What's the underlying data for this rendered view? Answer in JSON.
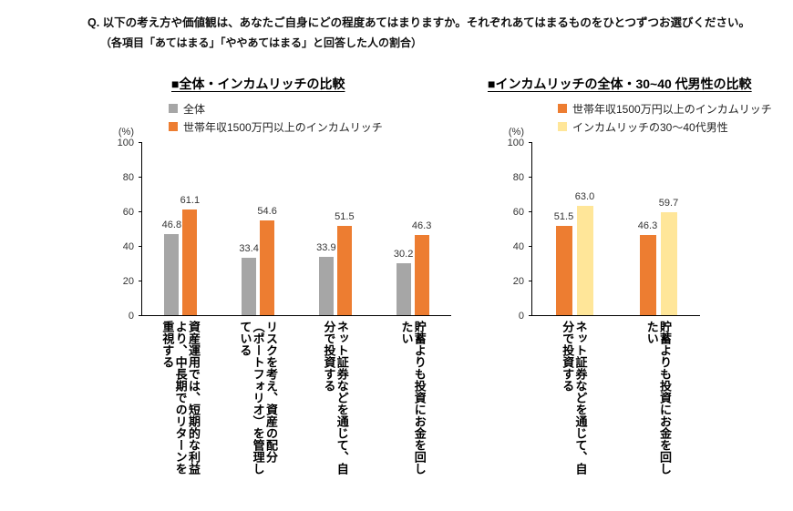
{
  "question": {
    "line1": "Q. 以下の考え方や価値観は、あなたご自身にどの程度あてはまりますか。それぞれあてはまるものをひとつずつお選びください。",
    "line2": "（各項目「あてはまる」「ややあてはまる」と回答した人の割合）"
  },
  "chart_data": [
    {
      "type": "bar",
      "title": "■全体・インカムリッチの比較",
      "unit_label": "(%)",
      "ylim": [
        0,
        100
      ],
      "yticks": [
        0,
        20,
        40,
        60,
        80,
        100
      ],
      "grid": false,
      "legend_position": "top",
      "categories": [
        "資産運用では、短期的な利益より、中長期でのリターンを重視する",
        "リスクを考え、資産の配分（ポートフォリオ）を管理している",
        "ネット証券などを通じて、自分で投資する",
        "貯蓄よりも投資にお金を回したい"
      ],
      "series": [
        {
          "name": "全体",
          "color": "#a6a6a6",
          "values": [
            46.8,
            33.4,
            33.9,
            30.2
          ]
        },
        {
          "name": "世帯年収1500万円以上のインカムリッチ",
          "color": "#ed7d31",
          "values": [
            61.1,
            54.6,
            51.5,
            46.3
          ]
        }
      ]
    },
    {
      "type": "bar",
      "title": "■インカムリッチの全体・30~40 代男性の比較",
      "unit_label": "(%)",
      "ylim": [
        0,
        100
      ],
      "yticks": [
        0,
        20,
        40,
        60,
        80,
        100
      ],
      "grid": false,
      "legend_position": "top",
      "categories": [
        "ネット証券などを通じて、自分で投資する",
        "貯蓄よりも投資にお金を回したい"
      ],
      "series": [
        {
          "name": "世帯年収1500万円以上のインカムリッチ",
          "color": "#ed7d31",
          "values": [
            51.5,
            46.3
          ]
        },
        {
          "name": "インカムリッチの30～40代男性",
          "color": "#ffe699",
          "values": [
            63.0,
            59.7
          ]
        }
      ]
    }
  ]
}
